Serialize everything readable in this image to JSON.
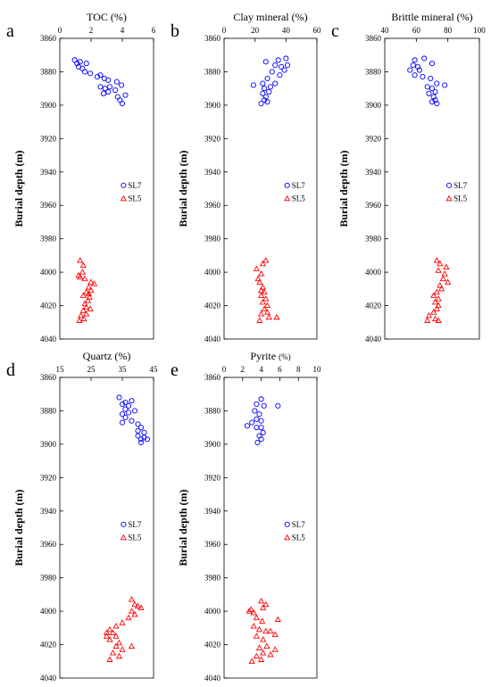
{
  "figure": {
    "ylabel": "Burial depth (m)",
    "y_ticks": [
      3860,
      3880,
      3900,
      3920,
      3940,
      3960,
      3980,
      4000,
      4020,
      4040
    ],
    "legend": [
      "SL7",
      "SL5"
    ],
    "colors": {
      "SL7": "#0000ff",
      "SL5": "#ff0000"
    },
    "markers": {
      "SL7": "circle",
      "SL5": "triangle"
    }
  },
  "chart_data": [
    {
      "type": "scatter",
      "panel_label": "a",
      "title": "TOC",
      "title_unit": "(%)",
      "xlim": [
        0,
        6
      ],
      "x_ticks": [
        "0",
        "2",
        "4",
        "6"
      ],
      "ylim": [
        4040,
        3860
      ],
      "legend_position": "right",
      "series": [
        {
          "name": "SL7",
          "points": [
            [
              0.95,
              3873
            ],
            [
              1.1,
              3875
            ],
            [
              1.2,
              3877
            ],
            [
              1.3,
              3874
            ],
            [
              1.45,
              3878
            ],
            [
              1.7,
              3875
            ],
            [
              1.6,
              3880
            ],
            [
              1.95,
              3881
            ],
            [
              2.4,
              3883
            ],
            [
              2.6,
              3882
            ],
            [
              2.85,
              3884
            ],
            [
              3.1,
              3885
            ],
            [
              2.6,
              3889
            ],
            [
              2.9,
              3890
            ],
            [
              3.2,
              3889
            ],
            [
              2.8,
              3893
            ],
            [
              3.1,
              3892
            ],
            [
              3.55,
              3891
            ],
            [
              3.7,
              3895
            ],
            [
              3.85,
              3897
            ],
            [
              4.0,
              3899
            ],
            [
              4.2,
              3894
            ],
            [
              3.65,
              3886
            ],
            [
              3.95,
              3888
            ]
          ]
        },
        {
          "name": "SL5",
          "points": [
            [
              1.3,
              3993
            ],
            [
              1.5,
              3996
            ],
            [
              1.45,
              4000
            ],
            [
              1.2,
              4002
            ],
            [
              1.6,
              4004
            ],
            [
              2.0,
              4006
            ],
            [
              2.2,
              4007
            ],
            [
              1.85,
              4009
            ],
            [
              2.0,
              4011
            ],
            [
              1.7,
              4012
            ],
            [
              1.5,
              4014
            ],
            [
              1.9,
              4015
            ],
            [
              1.8,
              4017
            ],
            [
              1.6,
              4019
            ],
            [
              1.7,
              4021
            ],
            [
              1.95,
              4022
            ],
            [
              1.5,
              4023
            ],
            [
              1.35,
              4026
            ],
            [
              1.55,
              4028
            ],
            [
              1.25,
              4029
            ],
            [
              1.7,
              4025
            ],
            [
              1.85,
              4013
            ],
            [
              1.3,
              4003
            ]
          ]
        }
      ]
    },
    {
      "type": "scatter",
      "panel_label": "b",
      "title": "Clay mineral",
      "title_unit": "(%)",
      "xlim": [
        0,
        60
      ],
      "x_ticks": [
        "0",
        "20",
        "40",
        "60"
      ],
      "ylim": [
        4040,
        3860
      ],
      "legend_position": "right",
      "series": [
        {
          "name": "SL7",
          "points": [
            [
              27,
              3874
            ],
            [
              35,
              3873
            ],
            [
              40,
              3872
            ],
            [
              33,
              3876
            ],
            [
              37,
              3877
            ],
            [
              41,
              3876
            ],
            [
              39,
              3879
            ],
            [
              31,
              3880
            ],
            [
              36,
              3882
            ],
            [
              28,
              3884
            ],
            [
              25,
              3887
            ],
            [
              19,
              3888
            ],
            [
              33,
              3887
            ],
            [
              26,
              3890
            ],
            [
              30,
              3889
            ],
            [
              25,
              3893
            ],
            [
              29,
              3892
            ],
            [
              27,
              3895
            ],
            [
              26,
              3897
            ],
            [
              24,
              3899
            ],
            [
              28,
              3898
            ]
          ]
        },
        {
          "name": "SL5",
          "points": [
            [
              25,
              3995
            ],
            [
              27,
              3993
            ],
            [
              21,
              3998
            ],
            [
              24,
              4001
            ],
            [
              22,
              4004
            ],
            [
              23,
              4006
            ],
            [
              25,
              4009
            ],
            [
              24,
              4011
            ],
            [
              26,
              4012
            ],
            [
              24,
              4014
            ],
            [
              27,
              4016
            ],
            [
              25,
              4018
            ],
            [
              28,
              4020
            ],
            [
              26,
              4022
            ],
            [
              24,
              4025
            ],
            [
              29,
              4027
            ],
            [
              23,
              4029
            ],
            [
              34,
              4027
            ],
            [
              28,
              4024
            ]
          ]
        }
      ]
    },
    {
      "type": "scatter",
      "panel_label": "c",
      "title": "Brittle mineral",
      "title_unit": "(%)",
      "xlim": [
        40,
        100
      ],
      "x_ticks": [
        "40",
        "60",
        "80",
        "100"
      ],
      "ylim": [
        4040,
        3860
      ],
      "legend_position": "right",
      "series": [
        {
          "name": "SL7",
          "points": [
            [
              59,
              3873
            ],
            [
              65,
              3872
            ],
            [
              58,
              3876
            ],
            [
              61,
              3877
            ],
            [
              62,
              3879
            ],
            [
              70,
              3875
            ],
            [
              56,
              3879
            ],
            [
              59,
              3882
            ],
            [
              64,
              3883
            ],
            [
              69,
              3884
            ],
            [
              73,
              3887
            ],
            [
              78,
              3888
            ],
            [
              67,
              3889
            ],
            [
              70,
              3890
            ],
            [
              72,
              3892
            ],
            [
              68,
              3893
            ],
            [
              71,
              3895
            ],
            [
              72,
              3897
            ],
            [
              70,
              3898
            ],
            [
              73,
              3899
            ]
          ]
        },
        {
          "name": "SL5",
          "points": [
            [
              73,
              3993
            ],
            [
              75,
              3995
            ],
            [
              79,
              3997
            ],
            [
              74,
              3999
            ],
            [
              78,
              4001
            ],
            [
              77,
              4004
            ],
            [
              80,
              4006
            ],
            [
              75,
              4008
            ],
            [
              76,
              4010
            ],
            [
              73,
              4012
            ],
            [
              71,
              4014
            ],
            [
              74,
              4016
            ],
            [
              72,
              4018
            ],
            [
              74,
              4020
            ],
            [
              73,
              4022
            ],
            [
              71,
              4024
            ],
            [
              68,
              4026
            ],
            [
              72,
              4028
            ],
            [
              74,
              4029
            ],
            [
              67,
              4029
            ]
          ]
        }
      ]
    },
    {
      "type": "scatter",
      "panel_label": "d",
      "title": "Quartz",
      "title_unit": "(%)",
      "xlim": [
        15,
        45
      ],
      "x_ticks": [
        "15",
        "25",
        "35",
        "45"
      ],
      "ylim": [
        4040,
        3860
      ],
      "legend_position": "right",
      "series": [
        {
          "name": "SL7",
          "points": [
            [
              34,
              3872
            ],
            [
              35,
              3876
            ],
            [
              36,
              3875
            ],
            [
              37,
              3877
            ],
            [
              38,
              3874
            ],
            [
              36,
              3879
            ],
            [
              37,
              3881
            ],
            [
              39,
              3880
            ],
            [
              35,
              3882
            ],
            [
              36,
              3884
            ],
            [
              38,
              3886
            ],
            [
              35,
              3887
            ],
            [
              40,
              3888
            ],
            [
              41,
              3890
            ],
            [
              40,
              3892
            ],
            [
              42,
              3893
            ],
            [
              40,
              3895
            ],
            [
              41,
              3897
            ],
            [
              42,
              3896
            ],
            [
              43,
              3897
            ],
            [
              41,
              3899
            ]
          ]
        },
        {
          "name": "SL5",
          "points": [
            [
              38,
              3993
            ],
            [
              39,
              3996
            ],
            [
              40,
              3997
            ],
            [
              41,
              3998
            ],
            [
              38,
              4000
            ],
            [
              39,
              4002
            ],
            [
              37,
              4004
            ],
            [
              35,
              4007
            ],
            [
              33,
              4009
            ],
            [
              31,
              4011
            ],
            [
              32,
              4013
            ],
            [
              30,
              4015
            ],
            [
              31,
              4017
            ],
            [
              34,
              4019
            ],
            [
              33,
              4021
            ],
            [
              35,
              4023
            ],
            [
              32,
              4025
            ],
            [
              34,
              4027
            ],
            [
              31,
              4029
            ],
            [
              38,
              4021
            ],
            [
              33,
              4015
            ],
            [
              30,
              4013
            ]
          ]
        }
      ]
    },
    {
      "type": "scatter",
      "panel_label": "e",
      "title": "Pyrite",
      "title_unit": "(%)",
      "xlim": [
        0,
        10
      ],
      "x_ticks": [
        "0",
        "2",
        "4",
        "6",
        "8",
        "10"
      ],
      "ylim": [
        4040,
        3860
      ],
      "legend_position": "right",
      "series": [
        {
          "name": "SL7",
          "points": [
            [
              4.0,
              3873
            ],
            [
              3.5,
              3876
            ],
            [
              4.3,
              3877
            ],
            [
              5.8,
              3877
            ],
            [
              3.3,
              3880
            ],
            [
              3.8,
              3882
            ],
            [
              3.5,
              3885
            ],
            [
              4.0,
              3886
            ],
            [
              2.5,
              3889
            ],
            [
              3.0,
              3887
            ],
            [
              3.5,
              3890
            ],
            [
              4.0,
              3890
            ],
            [
              4.2,
              3893
            ],
            [
              3.8,
              3895
            ],
            [
              4.0,
              3897
            ],
            [
              3.6,
              3899
            ]
          ]
        },
        {
          "name": "SL5",
          "points": [
            [
              2.9,
              3999
            ],
            [
              3.2,
              4001
            ],
            [
              2.7,
              4000
            ],
            [
              4.0,
              3994
            ],
            [
              4.5,
              3996
            ],
            [
              4.2,
              3998
            ],
            [
              3.5,
              4004
            ],
            [
              4.1,
              4006
            ],
            [
              3.2,
              4009
            ],
            [
              3.8,
              4011
            ],
            [
              4.5,
              4012
            ],
            [
              5.0,
              4012
            ],
            [
              3.5,
              4015
            ],
            [
              4.2,
              4017
            ],
            [
              5.5,
              4014
            ],
            [
              4.6,
              4021
            ],
            [
              3.8,
              4022
            ],
            [
              4.2,
              4025
            ],
            [
              5.0,
              4026
            ],
            [
              3.5,
              4027
            ],
            [
              4.0,
              4029
            ],
            [
              3.0,
              4030
            ],
            [
              5.8,
              4005
            ],
            [
              5.5,
              4023
            ]
          ]
        }
      ]
    }
  ]
}
